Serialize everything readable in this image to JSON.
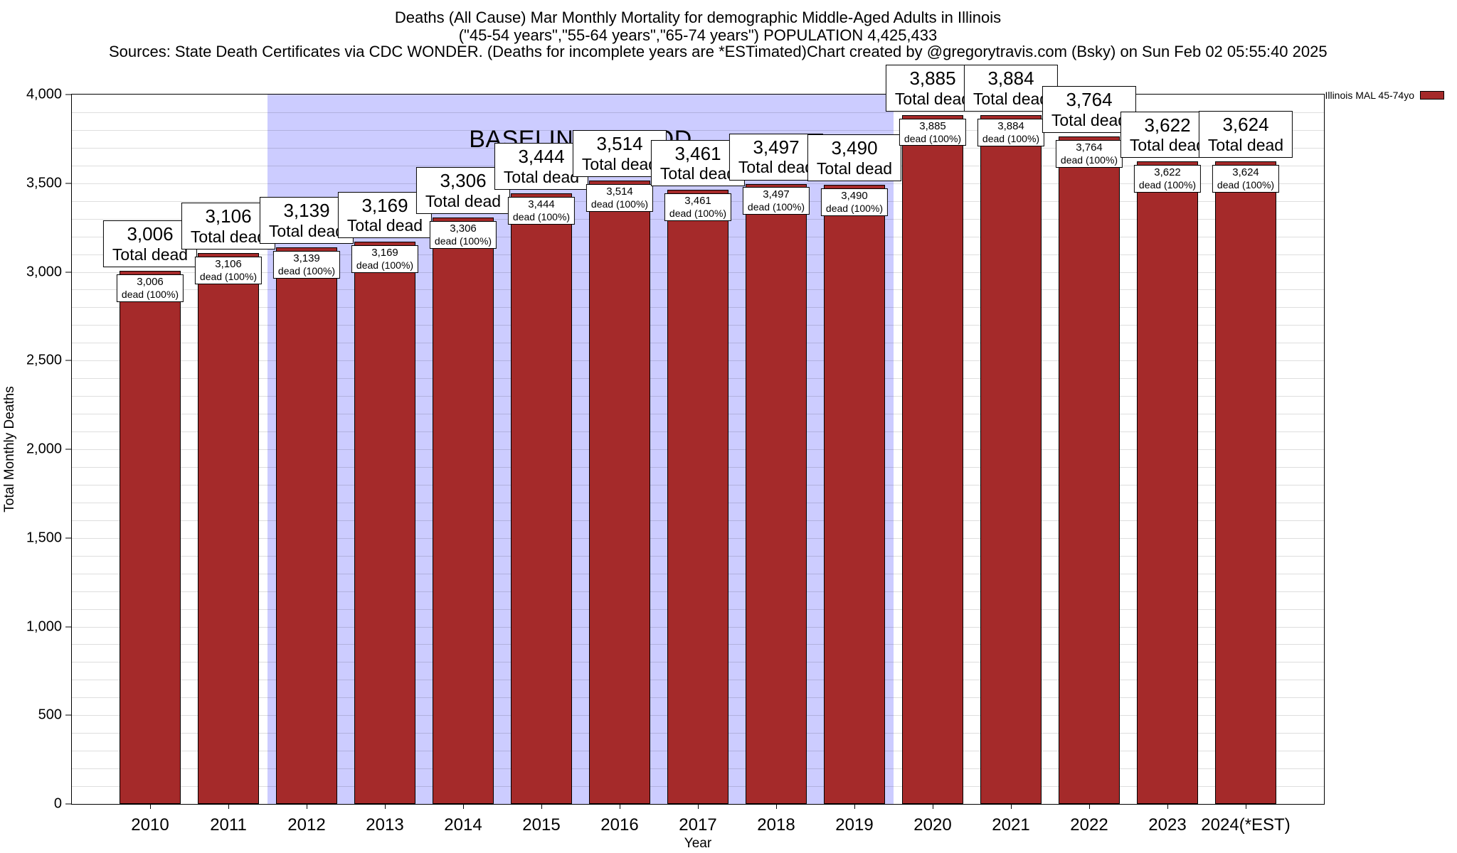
{
  "header": {
    "title_line1": "Deaths (All Cause) Mar Monthly Mortality for demographic Middle-Aged Adults in Illinois",
    "title_line2": "(\"45-54 years\",\"55-64 years\",\"65-74 years\") POPULATION 4,425,433",
    "sources_line": "Sources: State Death Certificates via CDC WONDER. (Deaths for incomplete years are *ESTimated)",
    "credit_line": "Chart created by @gregorytravis.com (Bsky) on Sun Feb 02 05:55:40 2025"
  },
  "legend": {
    "label": "Illinois MAL 45-74yo",
    "swatch_color": "#a52a2a"
  },
  "chart_data": {
    "type": "bar",
    "title": "Deaths (All Cause) Mar Monthly Mortality for demographic Middle-Aged Adults in Illinois",
    "subtitle": "(\"45-54 years\",\"55-64 years\",\"65-74 years\") POPULATION 4,425,433",
    "categories": [
      "2010",
      "2011",
      "2012",
      "2013",
      "2014",
      "2015",
      "2016",
      "2017",
      "2018",
      "2019",
      "2020",
      "2021",
      "2022",
      "2023",
      "2024(*EST)"
    ],
    "values": [
      3006,
      3106,
      3139,
      3169,
      3306,
      3444,
      3514,
      3461,
      3497,
      3490,
      3885,
      3884,
      3764,
      3622,
      3624
    ],
    "bar_top_caption": "Total dead",
    "bar_inner_caption": "dead (100%)",
    "xlabel": "Year",
    "ylabel": "Total Monthly Deaths",
    "ylim": [
      0,
      4000
    ],
    "ytick_step": 500,
    "grid_step": 100,
    "grid": true,
    "bar_color": "#a52a2a",
    "legend_position": "top-right",
    "baseline": {
      "label": "BASELINE PERIOD",
      "start_category": "2012",
      "end_category": "2019",
      "color": "#ccccff"
    }
  }
}
